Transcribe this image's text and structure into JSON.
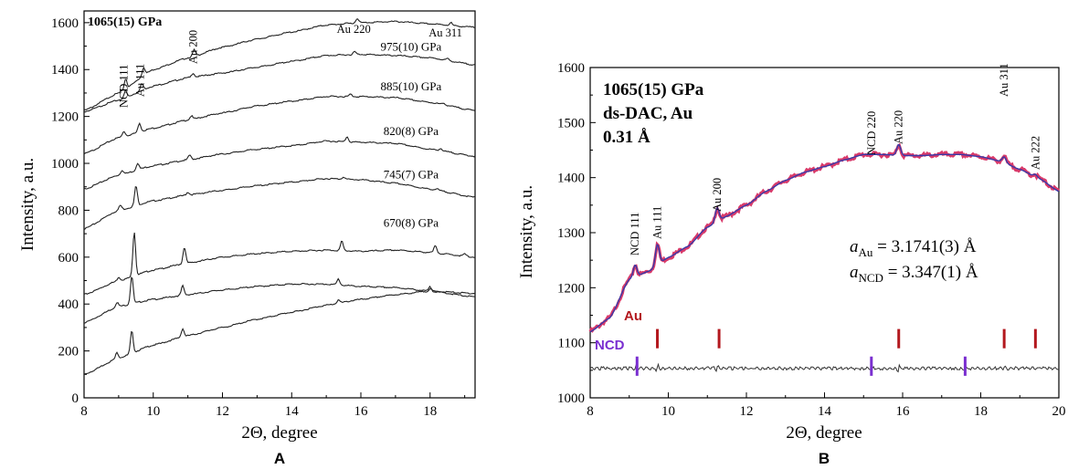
{
  "chart_data": [
    {
      "type": "line",
      "panel_label": "A",
      "annotation": "1065(15) GPa",
      "xlabel": "2Θ, degree",
      "ylabel": "Intensity, a.u.",
      "xlim": [
        8,
        19.3
      ],
      "ylim": [
        0,
        1650
      ],
      "xticks": [
        8,
        10,
        12,
        14,
        16,
        18
      ],
      "yticks": [
        0,
        200,
        400,
        600,
        800,
        1000,
        1200,
        1400,
        1600
      ],
      "peak_labels": [
        {
          "text": "NCD 111",
          "x": 9.15
        },
        {
          "text": "Au 111",
          "x": 9.62
        },
        {
          "text": "Au 200",
          "x": 11.15
        },
        {
          "text": "Au 220",
          "x": 15.9
        },
        {
          "text": "Au 311",
          "x": 18.55
        }
      ],
      "series": [
        {
          "name": "1065(15) GPa",
          "peaks": [
            [
              9.2,
              45
            ],
            [
              9.72,
              35
            ],
            [
              11.18,
              28
            ],
            [
              15.9,
              20
            ],
            [
              18.6,
              12
            ]
          ],
          "points": [
            [
              8,
              1225
            ],
            [
              9,
              1300
            ],
            [
              10,
              1400
            ],
            [
              11,
              1450
            ],
            [
              12,
              1495
            ],
            [
              13,
              1530
            ],
            [
              14,
              1560
            ],
            [
              15,
              1590
            ],
            [
              16,
              1600
            ],
            [
              17,
              1605
            ],
            [
              18,
              1595
            ],
            [
              19.3,
              1580
            ]
          ]
        },
        {
          "name": "975(10) GPa",
          "peaks": [
            [
              9.2,
              30
            ],
            [
              9.67,
              28
            ],
            [
              11.15,
              18
            ],
            [
              15.82,
              12
            ],
            [
              18.5,
              8
            ]
          ],
          "points": [
            [
              8,
              1220
            ],
            [
              9,
              1270
            ],
            [
              10,
              1330
            ],
            [
              11,
              1365
            ],
            [
              12,
              1385
            ],
            [
              13,
              1410
            ],
            [
              14,
              1435
            ],
            [
              15,
              1460
            ],
            [
              16,
              1465
            ],
            [
              17,
              1460
            ],
            [
              18,
              1450
            ],
            [
              19.3,
              1420
            ]
          ]
        },
        {
          "name": "885(10) GPa",
          "peaks": [
            [
              9.15,
              22
            ],
            [
              9.6,
              38
            ],
            [
              11.1,
              15
            ],
            [
              15.7,
              10
            ],
            [
              18.4,
              6
            ]
          ],
          "points": [
            [
              8,
              1040
            ],
            [
              9,
              1110
            ],
            [
              10,
              1150
            ],
            [
              11,
              1185
            ],
            [
              12,
              1215
            ],
            [
              13,
              1245
            ],
            [
              14,
              1265
            ],
            [
              15,
              1285
            ],
            [
              16,
              1285
            ],
            [
              17,
              1280
            ],
            [
              18,
              1260
            ],
            [
              19.3,
              1225
            ]
          ]
        },
        {
          "name": "820(8) GPa",
          "peaks": [
            [
              9.1,
              18
            ],
            [
              9.55,
              30
            ],
            [
              11.05,
              20
            ],
            [
              15.6,
              22
            ],
            [
              18.3,
              10
            ]
          ],
          "points": [
            [
              8,
              890
            ],
            [
              9,
              950
            ],
            [
              10,
              990
            ],
            [
              11,
              1015
            ],
            [
              12,
              1040
            ],
            [
              13,
              1060
            ],
            [
              14,
              1075
            ],
            [
              15,
              1095
            ],
            [
              16,
              1090
            ],
            [
              17,
              1085
            ],
            [
              18,
              1060
            ],
            [
              19.3,
              1030
            ]
          ]
        },
        {
          "name": "745(7) GPa",
          "peaks": [
            [
              9.05,
              20
            ],
            [
              9.5,
              85
            ],
            [
              11.0,
              12
            ],
            [
              15.5,
              10
            ],
            [
              18.2,
              5
            ]
          ],
          "points": [
            [
              8,
              720
            ],
            [
              9,
              800
            ],
            [
              10,
              840
            ],
            [
              11,
              865
            ],
            [
              12,
              885
            ],
            [
              13,
              905
            ],
            [
              14,
              920
            ],
            [
              15,
              935
            ],
            [
              16,
              930
            ],
            [
              17,
              915
            ],
            [
              18,
              890
            ],
            [
              19.3,
              855
            ]
          ]
        },
        {
          "name": "670(8) GPa",
          "peaks": [
            [
              9.0,
              15
            ],
            [
              9.45,
              190
            ],
            [
              10.9,
              70
            ],
            [
              15.45,
              40
            ],
            [
              18.15,
              30
            ],
            [
              19.0,
              10
            ]
          ],
          "points": [
            [
              8,
              440
            ],
            [
              9,
              500
            ],
            [
              10,
              545
            ],
            [
              11,
              575
            ],
            [
              12,
              600
            ],
            [
              13,
              615
            ],
            [
              14,
              625
            ],
            [
              15,
              630
            ],
            [
              16,
              625
            ],
            [
              17,
              630
            ],
            [
              18,
              620
            ],
            [
              19.3,
              600
            ]
          ]
        },
        {
          "name": "",
          "peaks": [
            [
              8.95,
              20
            ],
            [
              9.38,
              120
            ],
            [
              10.85,
              40
            ],
            [
              15.35,
              25
            ],
            [
              18.0,
              18
            ]
          ],
          "points": [
            [
              8,
              320
            ],
            [
              9,
              390
            ],
            [
              10,
              420
            ],
            [
              11,
              440
            ],
            [
              12,
              460
            ],
            [
              13,
              475
            ],
            [
              14,
              485
            ],
            [
              15,
              485
            ],
            [
              16,
              475
            ],
            [
              17,
              470
            ],
            [
              18,
              455
            ],
            [
              19.3,
              430
            ]
          ]
        },
        {
          "name": "",
          "peaks": [
            [
              8.95,
              25
            ],
            [
              9.38,
              95
            ],
            [
              10.85,
              35
            ],
            [
              15.35,
              15
            ],
            [
              18.0,
              10
            ]
          ],
          "points": [
            [
              8,
              100
            ],
            [
              9,
              170
            ],
            [
              10,
              225
            ],
            [
              11,
              265
            ],
            [
              12,
              300
            ],
            [
              13,
              335
            ],
            [
              14,
              365
            ],
            [
              15,
              395
            ],
            [
              16,
              420
            ],
            [
              17,
              440
            ],
            [
              18,
              455
            ],
            [
              19.3,
              445
            ]
          ]
        }
      ],
      "series_label_positions": [
        {
          "series": "975(10) GPa",
          "x": 17.45,
          "y": 1500
        },
        {
          "series": "885(10) GPa",
          "x": 17.45,
          "y": 1330
        },
        {
          "series": "820(8) GPa",
          "x": 17.45,
          "y": 1140
        },
        {
          "series": "745(7) GPa",
          "x": 17.45,
          "y": 955
        },
        {
          "series": "670(8) GPa",
          "x": 17.45,
          "y": 750
        }
      ]
    },
    {
      "type": "line",
      "panel_label": "B",
      "annotation_lines": [
        "1065(15) GPa",
        "ds-DAC, Au",
        "0.31 Å"
      ],
      "xlabel": "2Θ, degree",
      "ylabel": "Intensity, a.u.",
      "xlim": [
        8,
        20
      ],
      "ylim": [
        1000,
        1600
      ],
      "xticks": [
        8,
        10,
        12,
        14,
        16,
        18,
        20
      ],
      "yticks": [
        1000,
        1100,
        1200,
        1300,
        1400,
        1500,
        1600
      ],
      "lattice": [
        {
          "symbol": "a",
          "sub": "Au",
          "rest": " = 3.1741(3) Å"
        },
        {
          "symbol": "a",
          "sub": "NCD",
          "rest": " = 3.347(1) Å"
        }
      ],
      "peak_labels": [
        {
          "text": "NCD 111",
          "x": 9.15
        },
        {
          "text": "Au 111",
          "x": 9.72
        },
        {
          "text": "Au 200",
          "x": 11.25
        },
        {
          "text": "NCD 220",
          "x": 15.2
        },
        {
          "text": "Au 220",
          "x": 15.9
        },
        {
          "text": "Au 311",
          "x": 18.6
        },
        {
          "text": "Au 222",
          "x": 19.4
        }
      ],
      "observed": {
        "color": "#d93a6a"
      },
      "fit": {
        "color": "#3a3aa8"
      },
      "difference": {
        "color": "#333333",
        "baseline": 1055
      },
      "profile": [
        [
          8,
          1120
        ],
        [
          8.5,
          1145
        ],
        [
          9,
          1215
        ],
        [
          9.5,
          1230
        ],
        [
          10,
          1255
        ],
        [
          10.5,
          1275
        ],
        [
          11,
          1310
        ],
        [
          11.5,
          1330
        ],
        [
          12,
          1350
        ],
        [
          12.5,
          1375
        ],
        [
          13,
          1395
        ],
        [
          13.5,
          1410
        ],
        [
          14,
          1420
        ],
        [
          14.5,
          1432
        ],
        [
          15,
          1442
        ],
        [
          15.5,
          1442
        ],
        [
          16,
          1440
        ],
        [
          16.5,
          1440
        ],
        [
          17,
          1442
        ],
        [
          17.5,
          1442
        ],
        [
          18,
          1438
        ],
        [
          18.5,
          1430
        ],
        [
          19,
          1415
        ],
        [
          19.5,
          1398
        ],
        [
          20,
          1375
        ]
      ],
      "peaks": [
        [
          9.15,
          22
        ],
        [
          9.72,
          38
        ],
        [
          11.25,
          25
        ],
        [
          15.9,
          20
        ],
        [
          18.6,
          10
        ],
        [
          19.4,
          5
        ]
      ],
      "ticks": [
        {
          "phase": "Au",
          "color": "#b3181e",
          "positions": [
            9.72,
            11.3,
            15.9,
            18.6,
            19.4
          ]
        },
        {
          "phase": "NCD",
          "color": "#7a2fd0",
          "positions": [
            9.2,
            15.2,
            17.6
          ]
        }
      ],
      "phase_labels": [
        {
          "text": "Au",
          "color": "#b3181e"
        },
        {
          "text": "NCD",
          "color": "#7a2fd0"
        }
      ]
    }
  ]
}
